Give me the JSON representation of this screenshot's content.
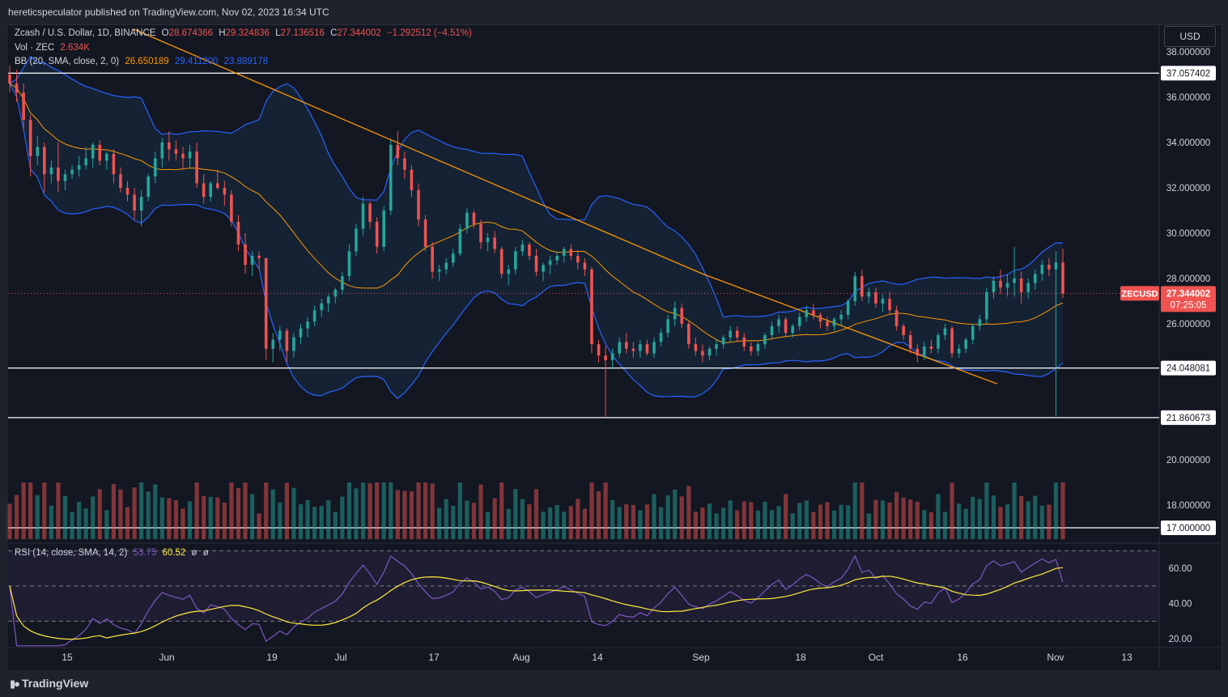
{
  "header": {
    "published": "hereticspeculator published on TradingView.com, Nov 02, 2023 16:34 UTC"
  },
  "legend": {
    "symbol": "Zcash / U.S. Dollar, 1D, BINANCE",
    "open_label": "O",
    "open": "28.674366",
    "high_label": "H",
    "high": "29.324836",
    "low_label": "L",
    "low": "27.136516",
    "close_label": "C",
    "close": "27.344002",
    "change": "−1.292512 (−4.51%)",
    "vol_label": "Vol · ZEC",
    "vol": "2.634K",
    "bb_label": "BB (20, SMA, close, 2, 0)",
    "bb_basis": "26.650189",
    "bb_upper": "29.411200",
    "bb_lower": "23.889178",
    "rsi_label": "RSI (14, close, SMA, 14, 2)",
    "rsi_value": "53.75",
    "rsi_ma": "60.52",
    "rsi_extra1": "ø",
    "rsi_extra2": "ø"
  },
  "currency_button": "USD",
  "price_axis": {
    "ticks": [
      "38.000000",
      "36.000000",
      "34.000000",
      "32.000000",
      "30.000000",
      "28.000000",
      "26.000000",
      "20.000000",
      "18.000000"
    ],
    "tick_values": [
      38,
      36,
      34,
      32,
      30,
      28,
      26,
      20,
      18
    ],
    "h_levels": [
      {
        "label": "37.057402",
        "value": 37.057402
      },
      {
        "label": "24.048081",
        "value": 24.048081
      },
      {
        "label": "21.860673",
        "value": 21.860673
      },
      {
        "label": "17.000000",
        "value": 17.0
      }
    ],
    "current": {
      "symbol": "ZECUSD",
      "price": "27.344002",
      "countdown": "07:25:05",
      "value": 27.344002
    }
  },
  "rsi_axis": {
    "ticks": [
      "60.00",
      "40.00",
      "20.00"
    ],
    "tick_values": [
      60,
      40,
      20
    ]
  },
  "time_axis": {
    "labels": [
      "15",
      "Jun",
      "19",
      "Jul",
      "17",
      "Aug",
      "14",
      "Sep",
      "18",
      "Oct",
      "16",
      "Nov",
      "13"
    ]
  },
  "colors": {
    "up": "#26a69a",
    "down": "#ef5350",
    "bb_band": "#2962ff",
    "bb_basis": "#ff9800",
    "rsi": "#7e57c2",
    "rsi_ma": "#ffeb3b",
    "bg": "#131722"
  },
  "chart_data": {
    "type": "candlestick",
    "symbol": "ZECUSD",
    "interval": "1D",
    "y_range": [
      16.5,
      39.0
    ],
    "x_labels": [
      "15",
      "Jun",
      "19",
      "Jul",
      "17",
      "Aug",
      "14",
      "Sep",
      "18",
      "Oct",
      "16",
      "Nov",
      "13"
    ],
    "last_close": 27.344002,
    "levels": [
      37.057402,
      24.048081,
      21.860673,
      17.0
    ],
    "candles": [
      [
        37.0,
        37.4,
        36.2,
        36.6
      ],
      [
        36.6,
        37.2,
        35.8,
        36.2
      ],
      [
        36.2,
        36.6,
        34.6,
        35.0
      ],
      [
        35.0,
        35.2,
        32.5,
        33.4
      ],
      [
        33.4,
        34.3,
        33.0,
        33.8
      ],
      [
        33.8,
        34.0,
        31.8,
        32.6
      ],
      [
        32.6,
        33.2,
        32.2,
        32.9
      ],
      [
        32.9,
        34.0,
        31.8,
        32.3
      ],
      [
        32.3,
        32.8,
        31.9,
        32.6
      ],
      [
        32.6,
        33.0,
        32.4,
        32.8
      ],
      [
        32.8,
        33.4,
        32.5,
        33.0
      ],
      [
        33.0,
        33.8,
        32.8,
        33.3
      ],
      [
        33.3,
        34.0,
        32.9,
        33.9
      ],
      [
        33.9,
        34.1,
        33.0,
        33.2
      ],
      [
        33.2,
        33.6,
        32.8,
        33.5
      ],
      [
        33.5,
        33.7,
        32.2,
        32.6
      ],
      [
        32.6,
        32.9,
        31.8,
        32.0
      ],
      [
        32.0,
        32.3,
        31.4,
        31.7
      ],
      [
        31.7,
        32.0,
        30.6,
        31.0
      ],
      [
        31.0,
        31.9,
        30.3,
        31.6
      ],
      [
        31.6,
        32.6,
        31.4,
        32.5
      ],
      [
        32.5,
        33.6,
        32.2,
        33.3
      ],
      [
        33.3,
        34.2,
        32.9,
        34.0
      ],
      [
        34.0,
        34.5,
        33.2,
        33.7
      ],
      [
        33.7,
        34.1,
        33.2,
        33.5
      ],
      [
        33.5,
        33.8,
        32.8,
        33.3
      ],
      [
        33.3,
        33.9,
        32.9,
        33.6
      ],
      [
        33.6,
        34.0,
        32.0,
        32.2
      ],
      [
        32.2,
        32.6,
        31.3,
        31.6
      ],
      [
        31.6,
        32.3,
        31.4,
        32.2
      ],
      [
        32.2,
        32.8,
        31.9,
        32.0
      ],
      [
        32.0,
        32.3,
        31.2,
        31.7
      ],
      [
        31.7,
        31.9,
        30.3,
        30.5
      ],
      [
        30.5,
        30.8,
        29.2,
        29.5
      ],
      [
        29.5,
        30.0,
        28.2,
        28.6
      ],
      [
        28.6,
        29.2,
        28.1,
        29.0
      ],
      [
        29.0,
        29.2,
        28.4,
        28.9
      ],
      [
        28.9,
        28.9,
        24.4,
        24.9
      ],
      [
        24.9,
        25.6,
        24.3,
        25.3
      ],
      [
        25.3,
        25.9,
        24.8,
        25.7
      ],
      [
        25.7,
        25.8,
        24.3,
        24.8
      ],
      [
        24.8,
        25.6,
        24.5,
        25.4
      ],
      [
        25.4,
        26.0,
        25.1,
        25.8
      ],
      [
        25.8,
        26.3,
        25.4,
        26.1
      ],
      [
        26.1,
        26.8,
        25.9,
        26.6
      ],
      [
        26.6,
        27.1,
        26.3,
        26.9
      ],
      [
        26.9,
        27.3,
        26.5,
        27.2
      ],
      [
        27.2,
        27.6,
        26.9,
        27.5
      ],
      [
        27.5,
        28.3,
        27.3,
        28.1
      ],
      [
        28.1,
        29.5,
        27.9,
        29.2
      ],
      [
        29.2,
        30.4,
        29.0,
        30.2
      ],
      [
        30.2,
        31.6,
        29.9,
        31.3
      ],
      [
        31.3,
        31.4,
        30.2,
        30.5
      ],
      [
        30.5,
        30.7,
        29.1,
        29.4
      ],
      [
        29.4,
        31.2,
        29.2,
        31.0
      ],
      [
        31.0,
        34.1,
        30.8,
        33.9
      ],
      [
        33.9,
        34.5,
        33.0,
        33.3
      ],
      [
        33.3,
        33.6,
        32.4,
        32.8
      ],
      [
        32.8,
        33.0,
        31.6,
        31.9
      ],
      [
        31.9,
        32.2,
        30.3,
        30.6
      ],
      [
        30.6,
        30.8,
        29.2,
        29.4
      ],
      [
        29.4,
        29.6,
        28.0,
        28.3
      ],
      [
        28.3,
        28.6,
        27.9,
        28.4
      ],
      [
        28.4,
        28.9,
        28.2,
        28.7
      ],
      [
        28.7,
        29.3,
        28.5,
        29.1
      ],
      [
        29.1,
        30.4,
        29.0,
        30.2
      ],
      [
        30.2,
        31.1,
        30.0,
        30.9
      ],
      [
        30.9,
        31.0,
        30.2,
        30.4
      ],
      [
        30.4,
        30.6,
        29.3,
        29.6
      ],
      [
        29.6,
        30.0,
        29.2,
        29.8
      ],
      [
        29.8,
        30.1,
        29.1,
        29.3
      ],
      [
        29.3,
        29.4,
        28.0,
        28.2
      ],
      [
        28.2,
        28.6,
        27.7,
        28.4
      ],
      [
        28.4,
        29.4,
        28.2,
        29.2
      ],
      [
        29.2,
        29.7,
        29.0,
        29.5
      ],
      [
        29.5,
        29.6,
        28.8,
        29.0
      ],
      [
        29.0,
        29.3,
        28.1,
        28.3
      ],
      [
        28.3,
        28.7,
        27.9,
        28.6
      ],
      [
        28.6,
        29.0,
        28.2,
        28.8
      ],
      [
        28.8,
        29.2,
        28.6,
        29.0
      ],
      [
        29.0,
        29.4,
        28.7,
        29.3
      ],
      [
        29.3,
        29.5,
        28.8,
        29.0
      ],
      [
        29.0,
        29.2,
        28.4,
        28.7
      ],
      [
        28.7,
        28.9,
        28.1,
        28.4
      ],
      [
        28.4,
        28.5,
        24.7,
        25.1
      ],
      [
        25.1,
        25.3,
        24.3,
        24.6
      ],
      [
        24.6,
        25.0,
        21.86,
        24.4
      ],
      [
        24.4,
        24.9,
        24.0,
        24.7
      ],
      [
        24.7,
        25.4,
        24.5,
        25.2
      ],
      [
        25.2,
        25.6,
        24.7,
        24.9
      ],
      [
        24.9,
        25.2,
        24.5,
        24.8
      ],
      [
        24.8,
        25.3,
        24.5,
        25.1
      ],
      [
        25.1,
        25.3,
        24.6,
        24.7
      ],
      [
        24.7,
        25.4,
        24.5,
        25.2
      ],
      [
        25.2,
        25.8,
        25.0,
        25.6
      ],
      [
        25.6,
        26.4,
        25.4,
        26.2
      ],
      [
        26.2,
        27.0,
        25.9,
        26.7
      ],
      [
        26.7,
        26.9,
        25.8,
        26.0
      ],
      [
        26.0,
        26.1,
        24.9,
        25.1
      ],
      [
        25.1,
        25.4,
        24.6,
        24.8
      ],
      [
        24.8,
        25.1,
        24.3,
        24.6
      ],
      [
        24.6,
        25.0,
        24.4,
        24.9
      ],
      [
        24.9,
        25.3,
        24.6,
        25.1
      ],
      [
        25.1,
        25.5,
        24.9,
        25.4
      ],
      [
        25.4,
        25.9,
        25.2,
        25.7
      ],
      [
        25.7,
        25.9,
        25.2,
        25.4
      ],
      [
        25.4,
        25.6,
        24.8,
        25.0
      ],
      [
        25.0,
        25.2,
        24.6,
        24.8
      ],
      [
        24.8,
        25.2,
        24.6,
        25.1
      ],
      [
        25.1,
        25.6,
        24.9,
        25.5
      ],
      [
        25.5,
        26.1,
        25.3,
        25.9
      ],
      [
        25.9,
        26.4,
        25.6,
        26.2
      ],
      [
        26.2,
        26.3,
        25.4,
        25.6
      ],
      [
        25.6,
        26.0,
        25.4,
        25.9
      ],
      [
        25.9,
        26.5,
        25.7,
        26.3
      ],
      [
        26.3,
        26.8,
        26.1,
        26.6
      ],
      [
        26.6,
        26.9,
        26.2,
        26.4
      ],
      [
        26.4,
        26.5,
        25.8,
        26.1
      ],
      [
        26.1,
        26.3,
        25.7,
        25.9
      ],
      [
        25.9,
        26.3,
        25.7,
        26.2
      ],
      [
        26.2,
        26.6,
        25.9,
        26.4
      ],
      [
        26.4,
        27.1,
        26.2,
        27.0
      ],
      [
        27.0,
        28.3,
        26.8,
        28.1
      ],
      [
        28.1,
        28.4,
        27.0,
        27.2
      ],
      [
        27.2,
        27.6,
        26.9,
        27.4
      ],
      [
        27.4,
        27.6,
        26.7,
        26.9
      ],
      [
        26.9,
        27.3,
        26.5,
        27.1
      ],
      [
        27.1,
        27.4,
        26.4,
        26.6
      ],
      [
        26.6,
        26.8,
        25.7,
        25.9
      ],
      [
        25.9,
        26.0,
        25.3,
        25.5
      ],
      [
        25.5,
        25.7,
        24.7,
        24.9
      ],
      [
        24.9,
        25.1,
        24.3,
        24.6
      ],
      [
        24.6,
        25.2,
        24.4,
        25.0
      ],
      [
        25.0,
        25.3,
        24.7,
        24.9
      ],
      [
        24.9,
        25.6,
        24.7,
        25.5
      ],
      [
        25.5,
        26.0,
        25.3,
        25.8
      ],
      [
        25.8,
        25.9,
        24.5,
        24.7
      ],
      [
        24.7,
        25.1,
        24.5,
        24.9
      ],
      [
        24.9,
        25.4,
        24.7,
        25.3
      ],
      [
        25.3,
        26.0,
        25.1,
        25.9
      ],
      [
        25.9,
        26.4,
        25.7,
        26.2
      ],
      [
        26.2,
        27.6,
        26.0,
        27.4
      ],
      [
        27.4,
        28.1,
        27.1,
        27.9
      ],
      [
        27.9,
        28.4,
        27.3,
        27.6
      ],
      [
        27.6,
        28.2,
        27.2,
        27.8
      ],
      [
        27.8,
        29.4,
        27.2,
        28.0
      ],
      [
        28.0,
        28.3,
        26.9,
        27.4
      ],
      [
        27.4,
        28.0,
        27.1,
        27.8
      ],
      [
        27.8,
        28.4,
        27.5,
        28.2
      ],
      [
        28.2,
        28.8,
        27.9,
        28.6
      ],
      [
        28.6,
        28.9,
        28.1,
        28.4
      ],
      [
        28.4,
        29.2,
        21.86,
        28.7
      ],
      [
        28.7,
        29.32,
        27.14,
        27.34
      ]
    ],
    "volume_scale_note": "relative volume bars",
    "rsi_range": [
      15,
      72
    ],
    "rsi_bands": [
      70,
      50,
      30
    ]
  }
}
